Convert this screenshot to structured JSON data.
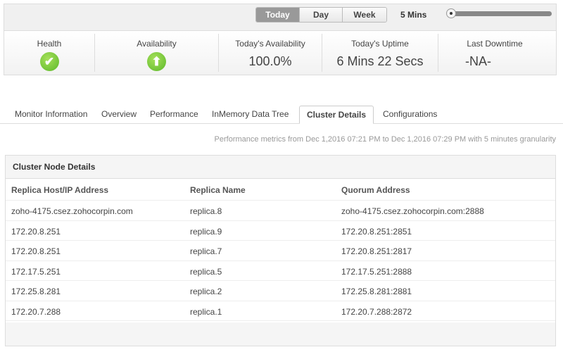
{
  "period": {
    "buttons": [
      "Today",
      "Day",
      "Week"
    ],
    "active": "Today",
    "interval_label": "5 Mins",
    "slider_level": 0
  },
  "stats": [
    {
      "label": "Health",
      "icon": "check-circle-icon"
    },
    {
      "label": "Availability",
      "icon": "arrow-up-circle-icon"
    },
    {
      "label": "Today's Availability",
      "value": "100.0%"
    },
    {
      "label": "Today's Uptime",
      "value": "6 Mins 22 Secs"
    },
    {
      "label": "Last Downtime",
      "value": "-NA-"
    }
  ],
  "tabs": [
    "Monitor Information",
    "Overview",
    "Performance",
    "InMemory Data Tree",
    "Cluster Details",
    "Configurations"
  ],
  "active_tab": "Cluster Details",
  "metrics_note": "Performance metrics from Dec 1,2016 07:21 PM to Dec 1,2016 07:29 PM with 5 minutes granularity",
  "panel": {
    "title": "Cluster Node Details",
    "columns": [
      "Replica Host/IP Address",
      "Replica Name",
      "Quorum Address"
    ],
    "rows": [
      [
        "zoho-4175.csez.zohocorpin.com",
        "replica.8",
        "zoho-4175.csez.zohocorpin.com:2888"
      ],
      [
        "172.20.8.251",
        "replica.9",
        "172.20.8.251:2851"
      ],
      [
        "172.20.8.251",
        "replica.7",
        "172.20.8.251:2817"
      ],
      [
        "172.17.5.251",
        "replica.5",
        "172.17.5.251:2888"
      ],
      [
        "172.25.8.281",
        "replica.2",
        "172.25.8.281:2881"
      ],
      [
        "172.20.7.288",
        "replica.1",
        "172.20.7.288:2872"
      ]
    ]
  },
  "colors": {
    "accent_green": "#5cb82a",
    "active_button": "#999999"
  }
}
